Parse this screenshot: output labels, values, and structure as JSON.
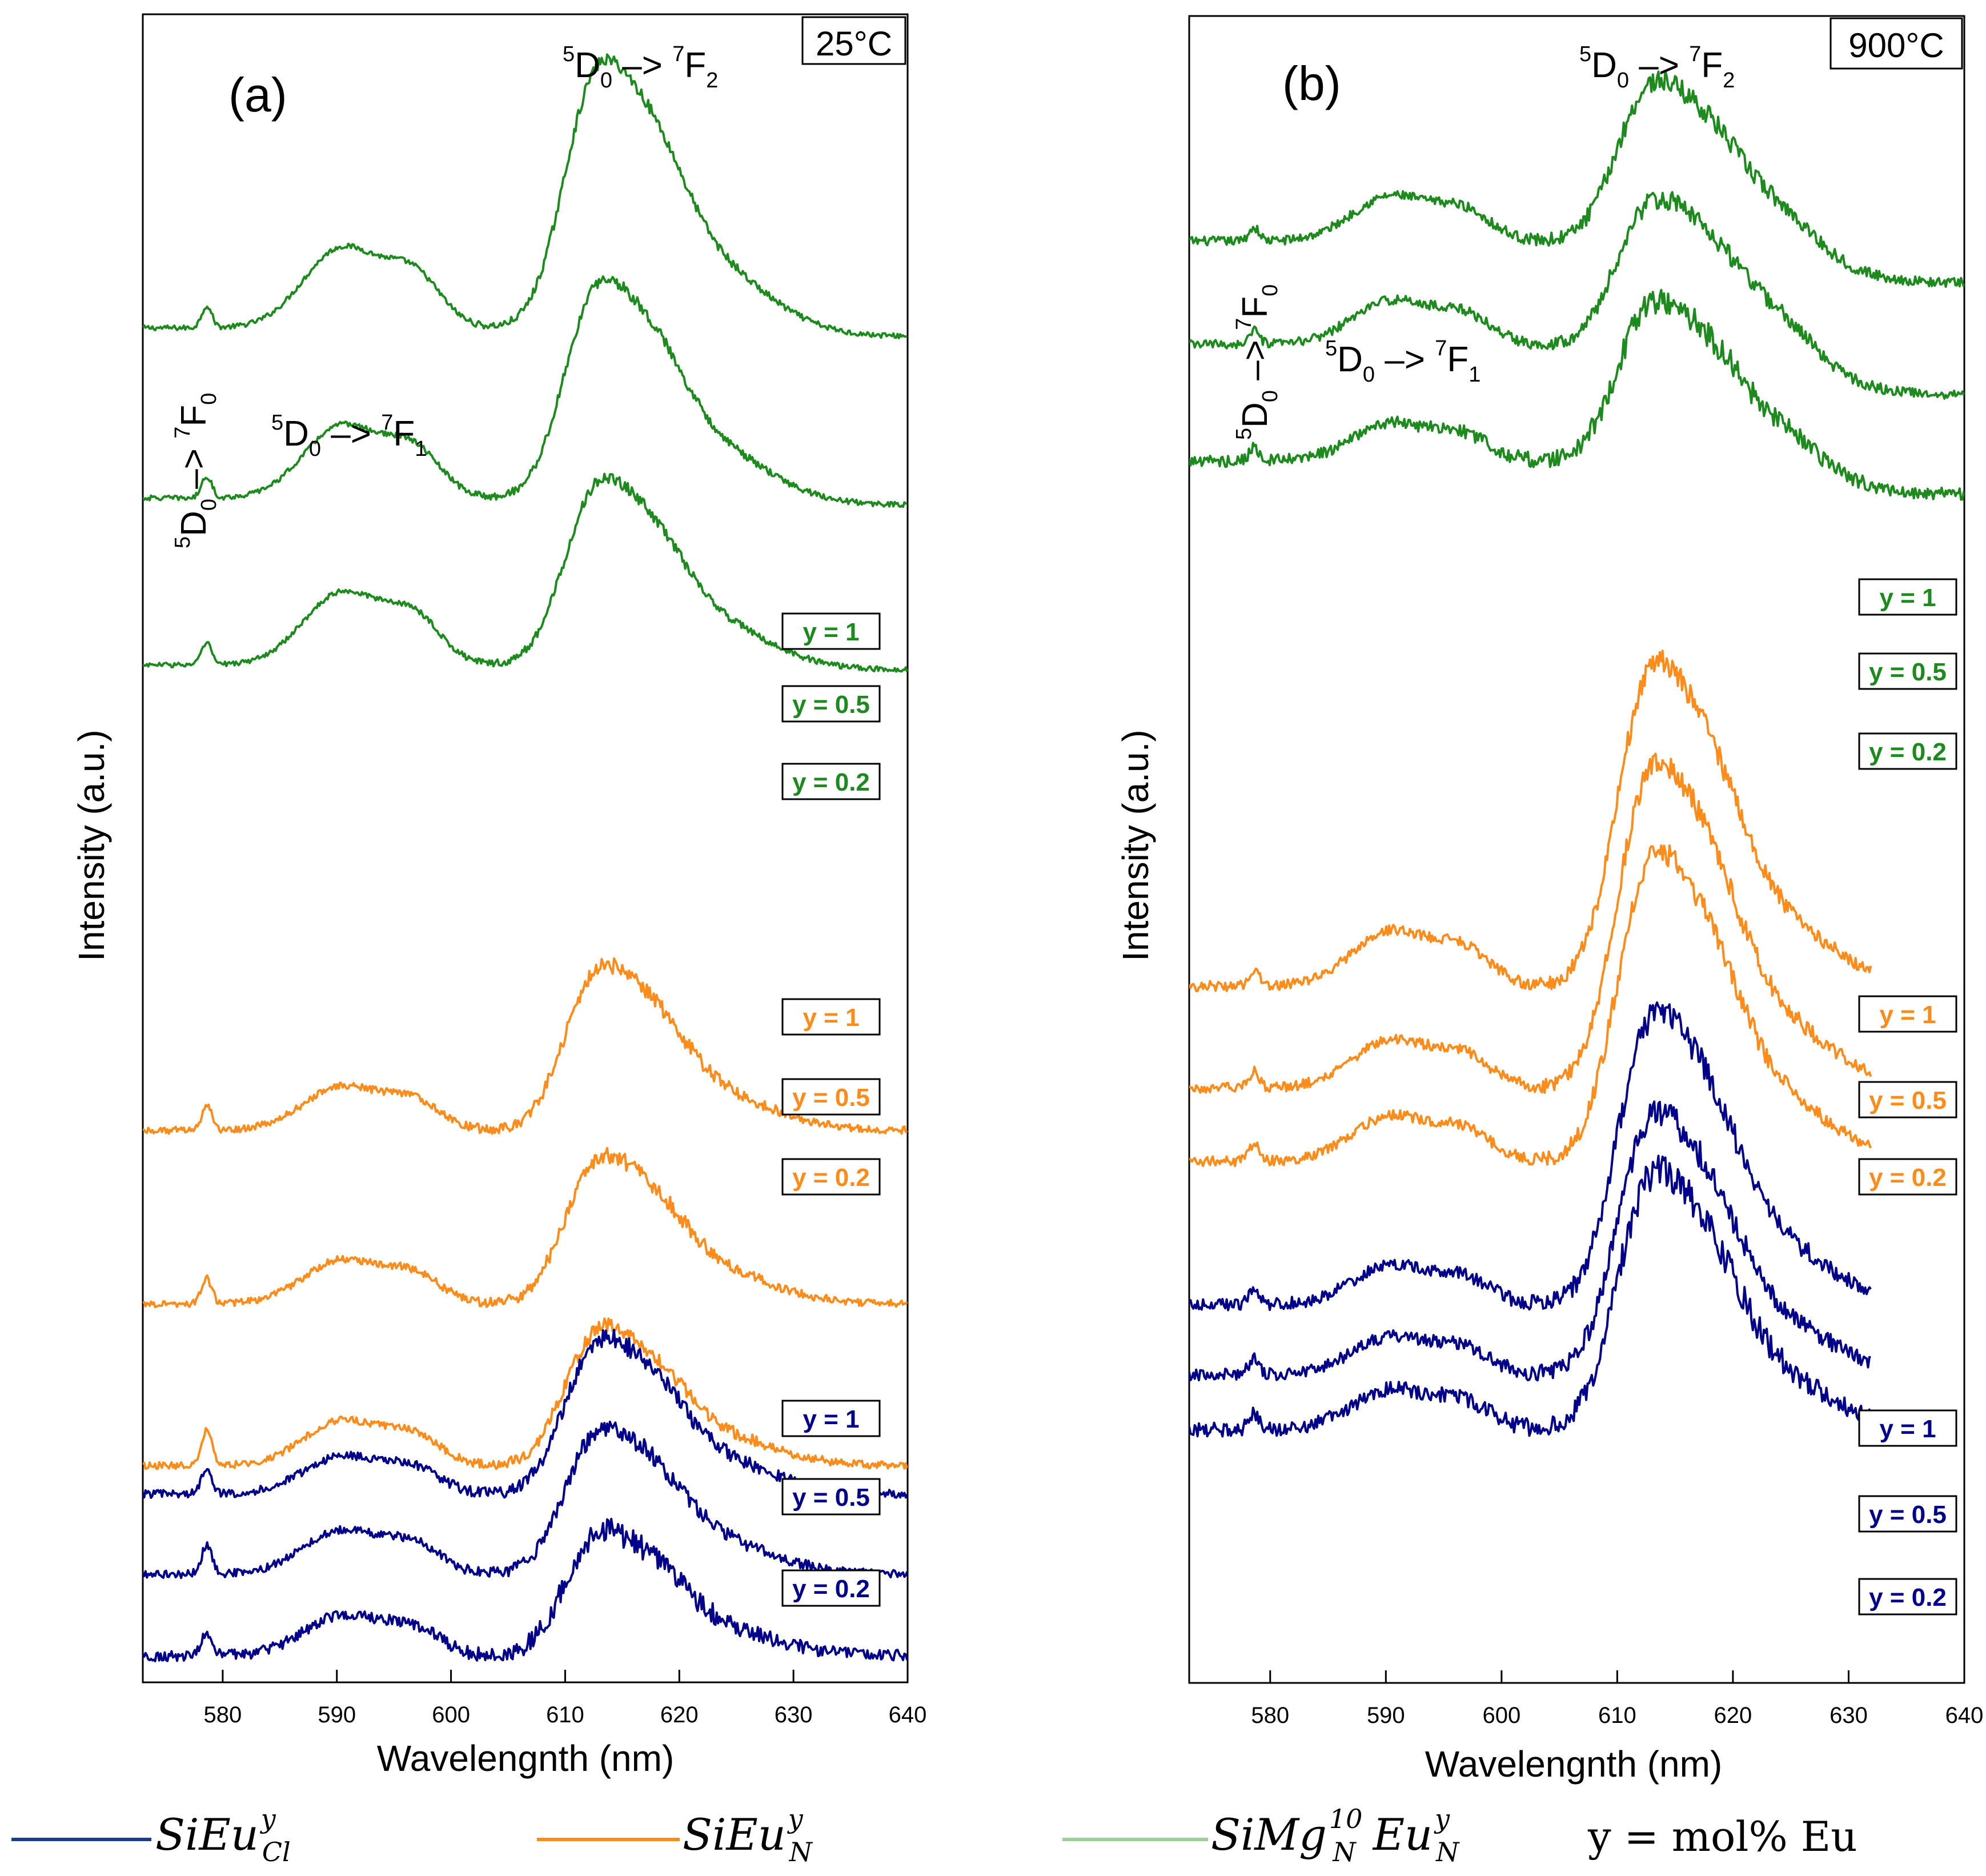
{
  "chart_data": [
    {
      "type": "line",
      "panel_label": "(a)",
      "temperature_label": "25°C",
      "xlabel": "Wavelengnth (nm)",
      "ylabel": "Intensity (a.u.)",
      "xlim": [
        573,
        640
      ],
      "ylim": [
        0,
        100
      ],
      "x_ticks": [
        "580",
        "590",
        "600",
        "610",
        "620",
        "630",
        "640"
      ],
      "annotations": {
        "f2": {
          "pre": "5",
          "main": "D",
          "sub": "0",
          "arrow": " –> ",
          "pre2": "7",
          "main2": "F",
          "sub2": "2"
        },
        "f1": {
          "pre": "5",
          "main": "D",
          "sub": "0",
          "arrow": " –> ",
          "pre2": "7",
          "main2": "F",
          "sub2": "1"
        },
        "f0": {
          "pre": "5",
          "main": "D",
          "sub": "0",
          "arrow": " –> ",
          "pre2": "7",
          "main2": "F",
          "sub2": "0"
        }
      },
      "series": [
        {
          "group": "SiMg",
          "y_label": "y = 1",
          "baseline": 81.2,
          "peak_height": 17.5,
          "broad_height": 6.4,
          "f0_height": 1.3,
          "noise": 0.25,
          "tail": -0.5,
          "end_x": 640
        },
        {
          "group": "SiMg",
          "y_label": "y = 0.5",
          "baseline": 71.0,
          "peak_height": 14.3,
          "broad_height": 5.8,
          "f0_height": 1.3,
          "noise": 0.25,
          "tail": -0.4,
          "end_x": 640
        },
        {
          "group": "SiMg",
          "y_label": "y = 0.2",
          "baseline": 61.0,
          "peak_height": 12.2,
          "broad_height": 5.8,
          "f0_height": 1.3,
          "noise": 0.25,
          "tail": -0.3,
          "end_x": 640
        },
        {
          "group": "SiEuN",
          "y_label": "y = 1",
          "baseline": 33.1,
          "peak_height": 10.8,
          "broad_height": 3.5,
          "f0_height": 1.5,
          "noise": 0.35,
          "tail": 0.0,
          "end_x": 640
        },
        {
          "group": "SiEuN",
          "y_label": "y = 0.5",
          "baseline": 22.7,
          "peak_height": 9.7,
          "broad_height": 3.5,
          "f0_height": 1.5,
          "noise": 0.35,
          "tail": 0.0,
          "end_x": 640
        },
        {
          "group": "SiEuN",
          "y_label": "y = 0.2",
          "baseline": 13.0,
          "peak_height": 9.1,
          "broad_height": 3.6,
          "f0_height": 2.1,
          "noise": 0.35,
          "tail": 0.0,
          "end_x": 640
        },
        {
          "group": "SiEuCl",
          "y_label": "y = 1",
          "baseline": 11.3,
          "peak_height": 10.2,
          "broad_height": 3.0,
          "f0_height": 1.6,
          "noise": 0.4,
          "tail": 0.0,
          "end_x": 640
        },
        {
          "group": "SiEuCl",
          "y_label": "y = 0.5",
          "baseline": 6.5,
          "peak_height": 9.6,
          "broad_height": 3.5,
          "f0_height": 1.7,
          "noise": 0.4,
          "tail": 0.0,
          "end_x": 640
        },
        {
          "group": "SiEuCl",
          "y_label": "y = 0.2",
          "baseline": 1.6,
          "peak_height": 8.2,
          "broad_height": 3.2,
          "f0_height": 1.4,
          "noise": 0.55,
          "tail": 0.0,
          "end_x": 640
        }
      ]
    },
    {
      "type": "line",
      "panel_label": "(b)",
      "temperature_label": "900°C",
      "xlabel": "Wavelengnth (nm)",
      "ylabel": "Intensity (a.u.)",
      "xlim": [
        573,
        640
      ],
      "ylim": [
        0,
        100
      ],
      "x_ticks": [
        "580",
        "590",
        "600",
        "610",
        "620",
        "630",
        "640"
      ],
      "annotations": {
        "f2": {
          "pre": "5",
          "main": "D",
          "sub": "0",
          "arrow": " –> ",
          "pre2": "7",
          "main2": "F",
          "sub2": "2"
        },
        "f1": {
          "pre": "5",
          "main": "D",
          "sub": "0",
          "arrow": " –> ",
          "pre2": "7",
          "main2": "F",
          "sub2": "1"
        },
        "f0": {
          "pre": "5",
          "main": "D",
          "sub": "0",
          "arrow": " –> ",
          "pre2": "7",
          "main2": "F",
          "sub2": "0"
        }
      },
      "series": [
        {
          "group": "SiMg",
          "y_label": "y = 1",
          "baseline": 86.5,
          "peak_height": 10.5,
          "broad_height": 3.6,
          "f0_height": 0.8,
          "noise": 0.45,
          "tail": -2.5,
          "end_x": 640
        },
        {
          "group": "SiMg",
          "y_label": "y = 0.5",
          "baseline": 80.3,
          "peak_height": 9.5,
          "broad_height": 3.5,
          "f0_height": 0.8,
          "noise": 0.45,
          "tail": -3.0,
          "end_x": 640
        },
        {
          "group": "SiMg",
          "y_label": "y = 0.2",
          "baseline": 73.3,
          "peak_height": 10.5,
          "broad_height": 3.0,
          "f0_height": 0.8,
          "noise": 0.6,
          "tail": -2.0,
          "end_x": 640
        },
        {
          "group": "SiEuN",
          "y_label": "y = 1",
          "baseline": 41.8,
          "peak_height": 21.2,
          "broad_height": 4.4,
          "f0_height": 1.0,
          "noise": 0.5,
          "tail": 0.0,
          "end_x": 632
        },
        {
          "group": "SiEuN",
          "y_label": "y = 0.5",
          "baseline": 35.7,
          "peak_height": 21.3,
          "broad_height": 3.8,
          "f0_height": 1.0,
          "noise": 0.5,
          "tail": 0.0,
          "end_x": 632
        },
        {
          "group": "SiEuN",
          "y_label": "y = 0.2",
          "baseline": 31.3,
          "peak_height": 20.2,
          "broad_height": 3.6,
          "f0_height": 1.0,
          "noise": 0.5,
          "tail": 0.0,
          "end_x": 632
        },
        {
          "group": "SiEuCl",
          "y_label": "y = 1",
          "baseline": 22.7,
          "peak_height": 19.1,
          "broad_height": 3.1,
          "f0_height": 1.0,
          "noise": 0.6,
          "tail": 0.0,
          "end_x": 632
        },
        {
          "group": "SiEuCl",
          "y_label": "y = 0.5",
          "baseline": 18.5,
          "peak_height": 17.1,
          "broad_height": 3.0,
          "f0_height": 1.0,
          "noise": 0.6,
          "tail": 0.0,
          "end_x": 632
        },
        {
          "group": "SiEuCl",
          "y_label": "y = 0.2",
          "baseline": 15.2,
          "peak_height": 16.9,
          "broad_height": 3.2,
          "f0_height": 1.0,
          "noise": 0.7,
          "tail": 0.0,
          "end_x": 632
        }
      ]
    }
  ],
  "colors": {
    "SiMg": "#1d8a1d",
    "SiMg_legend": "#99d199",
    "SiEuN": "#ff8c1a",
    "SiEuCl": "#00008b",
    "SiEuCl_legend": "#1a3d8f"
  },
  "legend": {
    "items": [
      {
        "key": "SiEuCl",
        "base": "SiEu",
        "sup": "y",
        "sub": "Cl"
      },
      {
        "key": "SiEuN",
        "base": "SiEu",
        "sup": "y",
        "sub": "N"
      },
      {
        "key": "SiMg",
        "base1": "SiMg",
        "sup1": "10",
        "sub1": "N",
        "base2": "Eu",
        "sup2": "y",
        "sub2": "N"
      }
    ],
    "note": "y = mol% Eu"
  }
}
